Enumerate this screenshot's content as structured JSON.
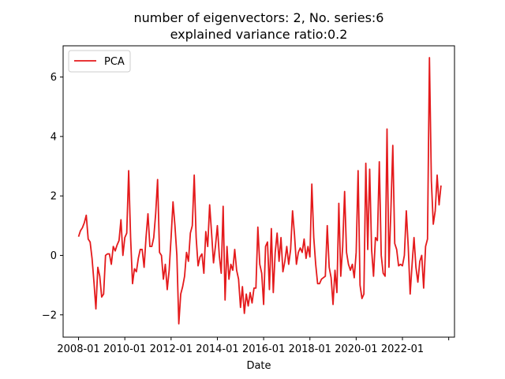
{
  "chart_data": {
    "type": "line",
    "title_line1": "number of eigenvectors: 2, No. series:6",
    "title_line2": "explained variance ratio:0.2",
    "xlabel": "Date",
    "ylabel": "",
    "x_tick_labels": [
      "2008-01",
      "2010-01",
      "2012-01",
      "2014-01",
      "2016-01",
      "2018-01",
      "2020-01",
      "2022-01",
      ""
    ],
    "y_ticks": [
      -2,
      0,
      2,
      4,
      6
    ],
    "y_tick_labels": [
      "−2",
      "0",
      "2",
      "4",
      "6"
    ],
    "xlim": [
      "2007-05",
      "2024-04"
    ],
    "ylim": [
      -2.75,
      7.05
    ],
    "grid": false,
    "legend_position": "top-left",
    "series": [
      {
        "name": "PCA",
        "color": "#e41a1c",
        "x_start": "2008-01",
        "x_step_months": 1,
        "values": [
          0.63,
          0.83,
          0.93,
          1.1,
          1.35,
          0.55,
          0.45,
          -0.1,
          -0.9,
          -1.8,
          -0.4,
          -0.7,
          -1.4,
          -1.3,
          0.0,
          0.05,
          0.05,
          -0.3,
          0.3,
          0.15,
          0.35,
          0.5,
          1.2,
          0.0,
          0.6,
          0.75,
          2.85,
          0.6,
          -0.95,
          -0.45,
          -0.55,
          -0.1,
          0.2,
          0.2,
          -0.4,
          0.6,
          1.4,
          0.3,
          0.3,
          0.6,
          1.4,
          2.55,
          0.1,
          0.0,
          -0.8,
          -0.3,
          -1.15,
          -0.5,
          0.6,
          1.8,
          1.0,
          0.0,
          -2.3,
          -1.3,
          -1.05,
          -0.7,
          0.1,
          -0.2,
          0.75,
          1.0,
          2.7,
          0.6,
          -0.35,
          -0.05,
          0.05,
          -0.6,
          0.8,
          0.3,
          1.7,
          0.75,
          -0.25,
          0.3,
          1.0,
          0.0,
          -0.6,
          1.65,
          -1.5,
          0.3,
          -0.8,
          -0.3,
          -0.5,
          0.2,
          -0.5,
          -0.8,
          -1.75,
          -1.05,
          -1.95,
          -1.3,
          -1.7,
          -1.25,
          -1.6,
          -1.1,
          -1.1,
          0.95,
          -0.3,
          -0.6,
          -1.65,
          0.3,
          0.45,
          -1.15,
          0.9,
          -1.25,
          0.1,
          0.75,
          -0.2,
          0.6,
          -0.55,
          -0.2,
          0.3,
          -0.3,
          0.2,
          1.5,
          0.7,
          -0.3,
          0.1,
          0.25,
          0.1,
          0.55,
          -0.1,
          0.3,
          -0.05,
          2.4,
          0.6,
          -0.3,
          -0.95,
          -0.95,
          -0.8,
          -0.75,
          -0.7,
          1.0,
          -0.4,
          -0.75,
          -1.65,
          -0.5,
          -1.25,
          1.75,
          -0.7,
          0.3,
          2.15,
          0.1,
          -0.3,
          -0.5,
          -0.3,
          -0.75,
          0.1,
          2.85,
          -1.0,
          -1.45,
          -1.3,
          3.1,
          0.2,
          2.9,
          0.2,
          -0.7,
          0.6,
          0.5,
          3.15,
          0.0,
          -0.6,
          -0.7,
          4.25,
          -0.4,
          1.5,
          3.7,
          0.4,
          0.2,
          -0.35,
          -0.3,
          -0.35,
          0.0,
          1.5,
          0.3,
          -1.3,
          -0.3,
          0.6,
          -0.4,
          -0.9,
          -0.2,
          0.0,
          -1.1,
          0.3,
          0.55,
          6.65,
          2.5,
          1.05,
          1.5,
          2.7,
          1.7,
          2.35
        ]
      }
    ]
  }
}
